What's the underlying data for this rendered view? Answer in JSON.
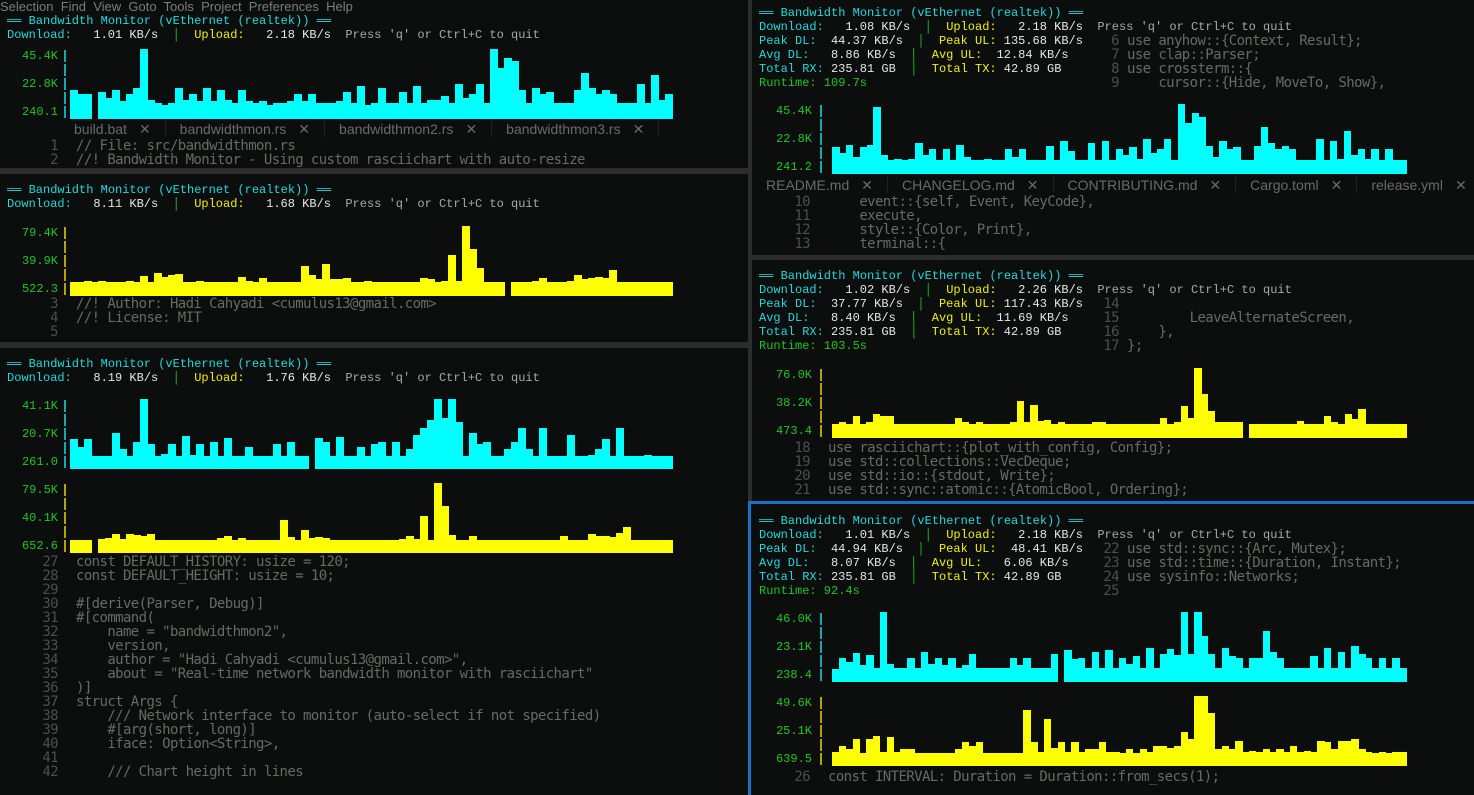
{
  "editor": {
    "menu": "Selection  Find  View  Goto  Tools  Project  Preferences  Help",
    "left_tabs": [
      "build.bat",
      "bandwidthmon.rs",
      "bandwidthmon2.rs",
      "bandwidthmon3.rs"
    ],
    "right_tabs": [
      "README.md",
      "CHANGELOG.md",
      "CONTRIBUTING.md",
      "Cargo.toml",
      "release.yml"
    ],
    "tab_close": "✕",
    "code": [
      {
        "n": "1",
        "t": "// File: src/bandwidthmon.rs"
      },
      {
        "n": "2",
        "t": "//! Bandwidth Monitor - Using custom rasciichart with auto-resize"
      },
      {
        "n": "3",
        "t": "//! Author: Hadi Cahyadi <cumulus13@gmail.com>"
      },
      {
        "n": "4",
        "t": "//! License: MIT"
      },
      {
        "n": "5",
        "t": ""
      },
      {
        "n": "6",
        "t": "use anyhow::{Context, Result};"
      },
      {
        "n": "7",
        "t": "use clap::Parser;"
      },
      {
        "n": "8",
        "t": "use crossterm::{"
      },
      {
        "n": "9",
        "t": "    cursor::{Hide, MoveTo, Show},"
      },
      {
        "n": "10",
        "t": "    event::{self, Event, KeyCode},"
      },
      {
        "n": "11",
        "t": "    execute,"
      },
      {
        "n": "12",
        "t": "    style::{Color, Print},"
      },
      {
        "n": "13",
        "t": "    terminal::{"
      },
      {
        "n": "14",
        "t": ""
      },
      {
        "n": "15",
        "t": "        LeaveAlternateScreen,"
      },
      {
        "n": "16",
        "t": "    },"
      },
      {
        "n": "17",
        "t": "};"
      },
      {
        "n": "18",
        "t": "use rasciichart::{plot_with_config, Config};"
      },
      {
        "n": "19",
        "t": "use std::collections::VecDeque;"
      },
      {
        "n": "20",
        "t": "use std::io::{stdout, Write};"
      },
      {
        "n": "21",
        "t": "use std::sync::atomic::{AtomicBool, Ordering};"
      },
      {
        "n": "22",
        "t": "use std::sync::{Arc, Mutex};"
      },
      {
        "n": "23",
        "t": "use std::time::{Duration, Instant};"
      },
      {
        "n": "24",
        "t": "use sysinfo::Networks;"
      },
      {
        "n": "25",
        "t": ""
      },
      {
        "n": "26",
        "t": "const INTERVAL: Duration = Duration::from_secs(1);"
      },
      {
        "n": "27",
        "t": "const DEFAULT_HISTORY: usize = 120;"
      },
      {
        "n": "28",
        "t": "const DEFAULT_HEIGHT: usize = 10;"
      },
      {
        "n": "29",
        "t": ""
      },
      {
        "n": "30",
        "t": "#[derive(Parser, Debug)]"
      },
      {
        "n": "31",
        "t": "#[command("
      },
      {
        "n": "32",
        "t": "    name = \"bandwidthmon2\","
      },
      {
        "n": "33",
        "t": "    version,"
      },
      {
        "n": "34",
        "t": "    author = \"Hadi Cahyadi <cumulus13@gmail.com>\","
      },
      {
        "n": "35",
        "t": "    about = \"Real-time network bandwidth monitor with rasciichart\""
      },
      {
        "n": "36",
        "t": ")]"
      },
      {
        "n": "37",
        "t": "struct Args {"
      },
      {
        "n": "38",
        "t": "    /// Network interface to monitor (auto-select if not specified)"
      },
      {
        "n": "39",
        "t": "    #[arg(short, long)]"
      },
      {
        "n": "40",
        "t": "    iface: Option<String>,"
      },
      {
        "n": "41",
        "t": ""
      },
      {
        "n": "42",
        "t": "    /// Chart height in lines"
      }
    ]
  },
  "colors": {
    "download": "#00ffff",
    "upload": "#ffff00",
    "axis_label": "#22c422",
    "active_pane_border": "#1a72c8"
  },
  "labels": {
    "download": "Download:",
    "upload": "Upload:",
    "peak_dl": "Peak DL:",
    "peak_ul": "Peak UL:",
    "avg_dl": "Avg DL:",
    "avg_ul": "Avg UL:",
    "total_rx": "Total RX:",
    "total_tx": "Total TX:",
    "runtime": "Runtime:",
    "separator": "│",
    "quit_hint": "Press 'q' or Ctrl+C to quit"
  },
  "panes": [
    {
      "title": "══ Bandwidth Monitor (vEthernet (realtek)) ══",
      "download": "1.01 KB/s",
      "upload": "2.18 KB/s",
      "charts": [
        {
          "series": "download",
          "labels": [
            "45.4K",
            "22.8K",
            "240.1"
          ],
          "max": 45.4,
          "values": [
            18.8,
            16.4,
            16.4,
            null,
            17.6,
            13.9,
            18.8,
            11.5,
            16.4,
            20.1,
            45.4,
            12.6,
            10.2,
            9.0,
            10.2,
            20.1,
            12.6,
            16.4,
            11.5,
            20.1,
            11.5,
            18.8,
            12.6,
            10.2,
            18.8,
            11.5,
            10.2,
            11.5,
            9.0,
            10.2,
            10.2,
            11.5,
            16.4,
            11.5,
            16.4,
            10.2,
            10.2,
            10.2,
            11.5,
            17.6,
            10.2,
            21.3,
            9.0,
            10.2,
            20.1,
            10.2,
            10.2,
            17.6,
            10.2,
            21.3,
            10.2,
            12.6,
            12.6,
            15.1,
            10.2,
            22.5,
            13.9,
            16.4,
            22.5,
            10.2,
            45.4,
            33.2,
            39.9,
            37.4,
            18.8,
            10.2,
            20.1,
            16.4,
            17.6,
            10.2,
            10.2,
            10.2,
            18.8,
            29.7,
            20.1,
            16.4,
            18.8,
            16.4,
            10.2,
            10.2,
            10.2,
            22.5,
            10.2,
            28.4,
            12.6,
            16.4
          ]
        }
      ]
    },
    {
      "title": "══ Bandwidth Monitor (vEthernet (realtek)) ══",
      "download": "8.11 KB/s",
      "upload": "1.68 KB/s",
      "charts": [
        {
          "series": "upload",
          "labels": [
            "79.4K",
            "39.9K",
            "522.3"
          ],
          "max": 79.4,
          "values": [
            16,
            16,
            17,
            16,
            17,
            16,
            16,
            16,
            17,
            16,
            23,
            16,
            26,
            22,
            24,
            25,
            16,
            16,
            17,
            16,
            16,
            16,
            16,
            16,
            22,
            17,
            16,
            20,
            16,
            16,
            16,
            16,
            16,
            34,
            24,
            19,
            36,
            19,
            19,
            21,
            16,
            16,
            17,
            16,
            16,
            16,
            16,
            16,
            16,
            16,
            21,
            19,
            16,
            17,
            47,
            17,
            79.4,
            53,
            32,
            16,
            16,
            16,
            null,
            16,
            16,
            16,
            17,
            21,
            16,
            16,
            16,
            17,
            24,
            19,
            21,
            22,
            21,
            30,
            16,
            16,
            16,
            16,
            16,
            16,
            16,
            16
          ]
        }
      ]
    },
    {
      "title": "══ Bandwidth Monitor (vEthernet (realtek)) ══",
      "download": "8.19 KB/s",
      "upload": "1.76 KB/s",
      "charts": [
        {
          "series": "download",
          "labels": [
            "41.1K",
            "20.7K",
            "261.0"
          ],
          "max": 41.1,
          "values": [
            17.8,
            13,
            17.8,
            7.9,
            7.9,
            7.9,
            21.3,
            12,
            7.9,
            16,
            41.1,
            15,
            7.9,
            9,
            15,
            7.9,
            19.4,
            8,
            15,
            7.9,
            16,
            7.9,
            18.2,
            7.9,
            7.9,
            13,
            7.9,
            7.9,
            7.9,
            15,
            7.9,
            16,
            7.9,
            7.9,
            null,
            18,
            16,
            7.9,
            19,
            7.9,
            7.9,
            13,
            7.9,
            14.6,
            16,
            7.9,
            16,
            7.9,
            12,
            20,
            24,
            28.6,
            41.1,
            30,
            41.1,
            27.6,
            7.9,
            21.3,
            15,
            16,
            7.9,
            7.9,
            12,
            16,
            24,
            12,
            7.9,
            24.3,
            7.9,
            7.9,
            7.9,
            20,
            7.9,
            7.9,
            8,
            12,
            17.8,
            7.9,
            24.3,
            7.9,
            7.9,
            7.9,
            8,
            7.9,
            7.9,
            7.9
          ]
        },
        {
          "series": "upload",
          "labels": [
            "79.5K",
            "40.1K",
            "652.6"
          ],
          "max": 79.5,
          "values": [
            15.3,
            15.3,
            15.3,
            null,
            16,
            17,
            22,
            16,
            22,
            21,
            19,
            22,
            15.3,
            15.3,
            15.3,
            15.3,
            15.3,
            15.3,
            15.3,
            15.3,
            15.3,
            17,
            19,
            15.3,
            17,
            15.3,
            15.3,
            15.3,
            15.3,
            15.3,
            38,
            18,
            15.3,
            26,
            17,
            18,
            17,
            15.3,
            15.3,
            15.3,
            15.3,
            15.3,
            15.3,
            15.3,
            15.3,
            15.3,
            15.3,
            16,
            19,
            16,
            42,
            15.3,
            79.5,
            53,
            20,
            15.3,
            15.3,
            19,
            15.3,
            15.3,
            15.3,
            15.3,
            15.3,
            15.3,
            15.3,
            15.3,
            15.3,
            15.3,
            15.3,
            15.3,
            19,
            15.3,
            15.3,
            15.3,
            22,
            19,
            19,
            18,
            23,
            30,
            15.3,
            15.3,
            15.3,
            15.3,
            15.3,
            15.3
          ]
        }
      ]
    },
    {
      "title": "══ Bandwidth Monitor (vEthernet (realtek)) ══",
      "download": "1.08 KB/s",
      "upload": "2.18 KB/s",
      "peak_dl": "44.37 KB/s",
      "peak_ul": "135.68 KB/s",
      "avg_dl": "8.86 KB/s",
      "avg_ul": "12.84 KB/s",
      "total_rx": "235.81 GB",
      "total_tx": "42.89 GB",
      "runtime": "109.7s",
      "charts": [
        {
          "series": "download",
          "labels": [
            "45.4K",
            "22.8K",
            "241.2"
          ],
          "max": 45.4,
          "values": [
            17.5,
            13.6,
            18.8,
            11,
            17.5,
            18.8,
            43.5,
            12.3,
            9.1,
            9.7,
            9.1,
            9.7,
            20.1,
            12.3,
            16.2,
            9.1,
            16.2,
            9.1,
            18.8,
            11,
            9.1,
            9.1,
            9.7,
            9.1,
            9.1,
            16.2,
            11,
            16.2,
            9.1,
            9.1,
            9.1,
            18.2,
            9.1,
            21.4,
            15,
            9.1,
            9.1,
            20.1,
            9.1,
            21.4,
            9.1,
            16.2,
            12.3,
            17.5,
            9.7,
            22.7,
            13.6,
            16.2,
            22.7,
            9.1,
            45.4,
            33,
            39.6,
            37,
            18.2,
            11,
            21.4,
            16.2,
            17.5,
            9.1,
            9.1,
            18.2,
            30.5,
            20.1,
            16.2,
            18.2,
            16.2,
            9.1,
            9.1,
            9.1,
            22.7,
            9.1,
            21.4,
            9.7,
            27.9,
            12.3,
            16.2,
            9.7,
            16.2,
            9.1,
            16.2,
            9.1,
            9.1
          ]
        }
      ]
    },
    {
      "title": "══ Bandwidth Monitor (vEthernet (realtek)) ══",
      "download": "1.02 KB/s",
      "upload": "2.26 KB/s",
      "peak_dl": "37.77 KB/s",
      "peak_ul": "117.43 KB/s",
      "avg_dl": "8.40 KB/s",
      "avg_ul": "11.69 KB/s",
      "total_rx": "235.81 GB",
      "total_tx": "42.89 GB",
      "runtime": "103.5s",
      "charts": [
        {
          "series": "upload",
          "labels": [
            "76.0K",
            "38.2K",
            "473.4"
          ],
          "max": 76.0,
          "values": [
            14.9,
            17.8,
            15.6,
            24.4,
            15.6,
            17.8,
            26.5,
            24.4,
            24.4,
            15.6,
            15.6,
            15.6,
            15.6,
            14.9,
            14.9,
            14.9,
            14.9,
            14.9,
            22,
            17.8,
            15.6,
            17.8,
            14.9,
            14.9,
            15.6,
            14.9,
            17.8,
            40.5,
            17.8,
            35.5,
            18.5,
            20,
            15.6,
            17.8,
            15.6,
            15.6,
            15.6,
            15.6,
            17.8,
            17.8,
            15.6,
            14.9,
            15.6,
            14.9,
            15.6,
            14.9,
            15.6,
            15.6,
            22,
            15.6,
            17.8,
            35,
            22,
            76,
            48,
            29.5,
            17.8,
            17.8,
            17.8,
            17.8,
            null,
            15.6,
            15.6,
            15.6,
            15.6,
            15.6,
            15.6,
            14.9,
            18.5,
            14.9,
            15.6,
            14.9,
            24.4,
            17.8,
            15.6,
            26.5,
            20.5,
            31,
            15.6,
            15.6,
            15.6,
            15.6,
            14.9,
            14.9
          ]
        }
      ]
    },
    {
      "title": "══ Bandwidth Monitor (vEthernet (realtek)) ══",
      "download": "1.01 KB/s",
      "upload": "2.18 KB/s",
      "peak_dl": "44.94 KB/s",
      "peak_ul": "48.41 KB/s",
      "avg_dl": "8.07 KB/s",
      "avg_ul": "6.06 KB/s",
      "total_rx": "235.81 GB",
      "total_tx": "42.89 GB",
      "runtime": "92.4s",
      "charts": [
        {
          "series": "download",
          "labels": [
            "46.0K",
            "23.1K",
            "238.4"
          ],
          "max": 46.0,
          "values": [
            8.8,
            16,
            13.3,
            19.2,
            11.5,
            17.8,
            9.1,
            46,
            12,
            9.1,
            9.1,
            16,
            9.1,
            20,
            12,
            16,
            11.5,
            16,
            9.1,
            11.5,
            18.6,
            9.1,
            9.1,
            9.1,
            9.1,
            9.1,
            16,
            11.5,
            16,
            9.1,
            9.1,
            9.1,
            18.6,
            null,
            21.2,
            15,
            16,
            9.1,
            20,
            9.1,
            21.2,
            9.1,
            16,
            12,
            17,
            9.1,
            22.6,
            9.1,
            18.6,
            22,
            18,
            46,
            18.6,
            46,
            30,
            18.6,
            9.1,
            22.6,
            17,
            16,
            9.1,
            16,
            16,
            33.5,
            20,
            16,
            9.1,
            9.1,
            9.1,
            9.1,
            17,
            9.1,
            22.6,
            9.1,
            20,
            9.1,
            24,
            18.6,
            16,
            9.1,
            16,
            9.1,
            16,
            9.1
          ]
        },
        {
          "series": "upload",
          "labels": [
            "49.6K",
            "25.1K",
            "639.5"
          ],
          "max": 49.6,
          "values": [
            10,
            14.3,
            11.9,
            19,
            9.3,
            19,
            21,
            10,
            20.5,
            10,
            11.9,
            11.9,
            9.3,
            9.3,
            9.3,
            9.3,
            9.3,
            9.3,
            11.9,
            16.7,
            14.3,
            16.7,
            9.3,
            9.3,
            9.3,
            9.3,
            9.3,
            9.3,
            39.5,
            16.7,
            10,
            33.2,
            13.1,
            16.7,
            10,
            16.7,
            10,
            11.9,
            11.9,
            16.7,
            10,
            10,
            9.3,
            11.9,
            9.3,
            11.9,
            10,
            14.3,
            14.3,
            13.1,
            14.3,
            23.8,
            19,
            49.6,
            49.6,
            37.6,
            11.9,
            14.3,
            11.9,
            17.8,
            10,
            10.5,
            10,
            11.9,
            10,
            11.9,
            10,
            14.3,
            10,
            10.5,
            10,
            17.8,
            16.7,
            11.9,
            17.8,
            17.8,
            19,
            11.9,
            10,
            9.3,
            10,
            9.3,
            10,
            10
          ]
        }
      ]
    }
  ]
}
